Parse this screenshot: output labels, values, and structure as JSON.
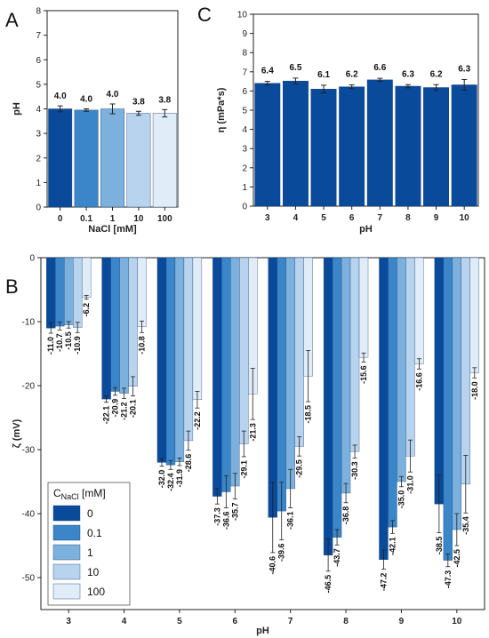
{
  "panels": {
    "a": "A",
    "b": "B",
    "c": "C"
  },
  "colors": [
    "#0a4a9a",
    "#3a86c8",
    "#7bb1dc",
    "#b8d3ee",
    "#e0ecf8"
  ],
  "chart_data": [
    {
      "id": "A",
      "type": "bar",
      "xlabel": "NaCl [mM]",
      "ylabel": "pH",
      "categories": [
        "0",
        "0.1",
        "1",
        "10",
        "100"
      ],
      "values": [
        4.0,
        3.95,
        4.0,
        3.82,
        3.82
      ],
      "errors": [
        0.12,
        0.05,
        0.2,
        0.08,
        0.15
      ],
      "labels": [
        "4.0",
        "4.0",
        "4.0",
        "3.8",
        "3.8"
      ],
      "ylim": [
        0,
        8
      ],
      "yticks": [
        "0",
        "1",
        "2",
        "3",
        "4",
        "5",
        "6",
        "7",
        "8"
      ]
    },
    {
      "id": "C",
      "type": "bar",
      "xlabel": "pH",
      "ylabel": "η (mPa*s)",
      "categories": [
        "3",
        "4",
        "5",
        "6",
        "7",
        "8",
        "9",
        "10"
      ],
      "values": [
        6.4,
        6.52,
        6.1,
        6.22,
        6.58,
        6.25,
        6.18,
        6.32
      ],
      "errors": [
        0.1,
        0.15,
        0.2,
        0.1,
        0.08,
        0.08,
        0.15,
        0.28
      ],
      "labels": [
        "6.4",
        "6.5",
        "6.1",
        "6.2",
        "6.6",
        "6.3",
        "6.2",
        "6.3"
      ],
      "ylim": [
        0,
        10
      ],
      "yticks": [
        "0",
        "1",
        "2",
        "3",
        "4",
        "5",
        "6",
        "7",
        "8",
        "9",
        "10"
      ]
    },
    {
      "id": "B",
      "type": "bar",
      "xlabel": "pH",
      "ylabel": "ζ (mV)",
      "legend_title": "C",
      "legend_sub": "NaCl",
      "legend_unit": " [mM]",
      "legend": "bottom-left",
      "ylim": [
        -55,
        0
      ],
      "yticks": [
        "0",
        "-10",
        "-20",
        "-30",
        "-40",
        "-50"
      ],
      "categories": [
        "3",
        "4",
        "5",
        "6",
        "7",
        "8",
        "9",
        "10"
      ],
      "series": [
        {
          "name": "0",
          "values": [
            -11.0,
            -22.1,
            -32.0,
            -37.3,
            -40.6,
            -46.5,
            -47.2,
            -38.5
          ],
          "errors": [
            0.8,
            0.5,
            0.6,
            1.2,
            5.5,
            2.5,
            1.5,
            4.5
          ]
        },
        {
          "name": "0.1",
          "values": [
            -10.7,
            -20.9,
            -32.4,
            -36.6,
            -39.6,
            -43.7,
            -42.1,
            -47.3
          ],
          "errors": [
            0.6,
            0.6,
            0.7,
            2.5,
            4.5,
            1.2,
            1.0,
            1.0
          ]
        },
        {
          "name": "1",
          "values": [
            -10.5,
            -21.2,
            -31.9,
            -35.7,
            -36.1,
            -36.8,
            -35.0,
            -42.5
          ],
          "errors": [
            0.5,
            0.8,
            0.6,
            2.0,
            3.0,
            1.5,
            0.8,
            2.5
          ]
        },
        {
          "name": "10",
          "values": [
            -10.9,
            -20.1,
            -28.6,
            -29.1,
            -29.5,
            -30.3,
            -31.0,
            -35.4
          ],
          "errors": [
            0.8,
            1.5,
            1.5,
            2.0,
            1.5,
            1.0,
            2.5,
            4.5
          ]
        },
        {
          "name": "100",
          "values": [
            -6.2,
            -10.8,
            -22.2,
            -21.3,
            -18.5,
            -15.6,
            -16.6,
            -18.0
          ],
          "errors": [
            0.3,
            0.9,
            1.3,
            4.0,
            4.0,
            0.7,
            0.8,
            0.8
          ]
        }
      ],
      "labels": [
        [
          "-11.0",
          "-22.1",
          "-32.0",
          "-37.3",
          "-40.6",
          "-46.5",
          "-47.2",
          "-38.5"
        ],
        [
          "-10.7",
          "-20.9",
          "-32.4",
          "-36.6",
          "-39.6",
          "-43.7",
          "-42.1",
          "-47.3"
        ],
        [
          "-10.5",
          "-21.2",
          "-31.9",
          "-35.7",
          "-36.1",
          "-36.8",
          "-35.0",
          "-42.5"
        ],
        [
          "-10.9",
          "-20.1",
          "-28.6",
          "-29.1",
          "-29.5",
          "-30.3",
          "-31.0",
          "-35.4"
        ],
        [
          "-6.2",
          "-10.8",
          "-22.2",
          "-21.3",
          "-18.5",
          "-15.6",
          "-16.6",
          "-18.0"
        ]
      ]
    }
  ]
}
